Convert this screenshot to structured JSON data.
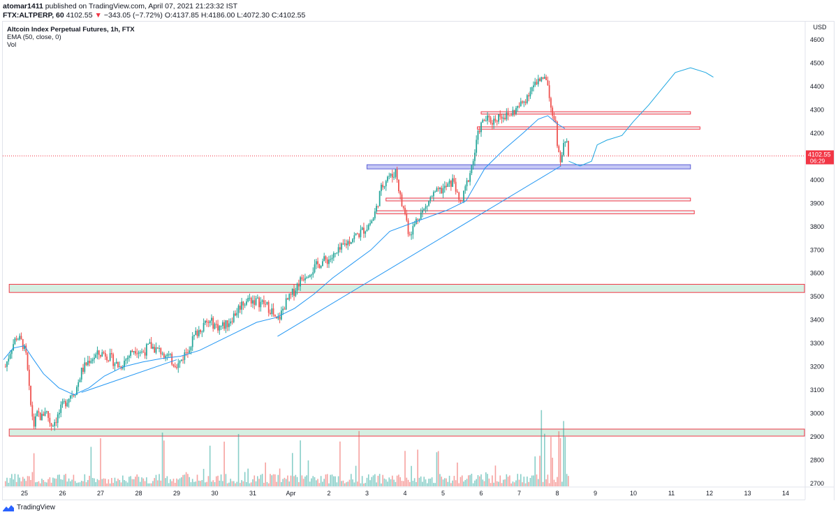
{
  "header": {
    "user": "atomar1411",
    "published": "published on TradingView.com, April 07, 2021 21:23:32 IST",
    "symbol_line": "FTX:ALTPERP, 60",
    "last": "4102.55",
    "change_arrow": "▼",
    "change": "−343.05 (−7.72%)",
    "o_label": "O:",
    "o_value": "4137.85",
    "h_label": "H:",
    "h_value": "4186.00",
    "l_label": "L:",
    "l_value": "4072.30",
    "c_label": "C:",
    "c_value": "4102.55"
  },
  "legend": {
    "title": "Altcoin Index Perpetual Futures, 1h, FTX",
    "ema": "EMA (50, close, 0)",
    "vol": "Vol"
  },
  "price_axis": {
    "currency": "USD",
    "last_price_label": "4102.55",
    "countdown": "06:29"
  },
  "footer": {
    "brand": "TradingView"
  },
  "colors": {
    "up": "#26a69a",
    "down": "#ef5350",
    "ema": "#2196f3",
    "trendline": "#2196f3",
    "zone_red": "#f23645",
    "zone_green_fill": "#d6efe2",
    "zone_blue_fill": "#c5c8f5",
    "zone_blue_border": "#5b5fd6"
  },
  "chart_data": {
    "type": "candlestick",
    "title": "Altcoin Index Perpetual Futures, 1h, FTX",
    "ylim": [
      2680,
      4650
    ],
    "y_ticks": [
      2700,
      2800,
      2900,
      3000,
      3100,
      3200,
      3300,
      3400,
      3500,
      3600,
      3700,
      3800,
      3900,
      4000,
      4100,
      4200,
      4300,
      4400,
      4500,
      4600
    ],
    "x_ticks": [
      "25",
      "26",
      "27",
      "28",
      "29",
      "30",
      "31",
      "Apr",
      "2",
      "3",
      "4",
      "5",
      "6",
      "7",
      "8",
      "9",
      "10",
      "11",
      "12",
      "13",
      "14"
    ],
    "xlim_days": [
      -0.3,
      20.4
    ],
    "price_path": [
      [
        -0.5,
        3200
      ],
      [
        -0.35,
        3280
      ],
      [
        -0.2,
        3330
      ],
      [
        -0.05,
        3300
      ],
      [
        0.05,
        3240
      ],
      [
        0.15,
        3050
      ],
      [
        0.25,
        2950
      ],
      [
        0.35,
        3000
      ],
      [
        0.45,
        2980
      ],
      [
        0.55,
        3020
      ],
      [
        0.7,
        2950
      ],
      [
        0.85,
        2980
      ],
      [
        1.0,
        3030
      ],
      [
        1.2,
        3080
      ],
      [
        1.35,
        3100
      ],
      [
        1.5,
        3180
      ],
      [
        1.7,
        3230
      ],
      [
        1.9,
        3250
      ],
      [
        2.1,
        3260
      ],
      [
        2.3,
        3230
      ],
      [
        2.5,
        3200
      ],
      [
        2.7,
        3240
      ],
      [
        2.9,
        3280
      ],
      [
        3.1,
        3260
      ],
      [
        3.3,
        3290
      ],
      [
        3.5,
        3270
      ],
      [
        3.7,
        3260
      ],
      [
        3.9,
        3220
      ],
      [
        4.05,
        3210
      ],
      [
        4.3,
        3280
      ],
      [
        4.5,
        3340
      ],
      [
        4.7,
        3380
      ],
      [
        4.9,
        3390
      ],
      [
        5.1,
        3370
      ],
      [
        5.3,
        3380
      ],
      [
        5.5,
        3420
      ],
      [
        5.7,
        3470
      ],
      [
        5.9,
        3490
      ],
      [
        6.1,
        3480
      ],
      [
        6.3,
        3470
      ],
      [
        6.5,
        3440
      ],
      [
        6.6,
        3390
      ],
      [
        6.7,
        3410
      ],
      [
        6.85,
        3470
      ],
      [
        7.0,
        3500
      ],
      [
        7.2,
        3560
      ],
      [
        7.4,
        3600
      ],
      [
        7.6,
        3620
      ],
      [
        7.8,
        3650
      ],
      [
        8.0,
        3660
      ],
      [
        8.2,
        3680
      ],
      [
        8.4,
        3720
      ],
      [
        8.6,
        3750
      ],
      [
        8.8,
        3770
      ],
      [
        9.0,
        3800
      ],
      [
        9.15,
        3830
      ],
      [
        9.25,
        3880
      ],
      [
        9.35,
        3950
      ],
      [
        9.45,
        3990
      ],
      [
        9.55,
        4020
      ],
      [
        9.65,
        4010
      ],
      [
        9.75,
        4040
      ],
      [
        9.8,
        4000
      ],
      [
        9.9,
        3900
      ],
      [
        10.0,
        3860
      ],
      [
        10.1,
        3770
      ],
      [
        10.2,
        3790
      ],
      [
        10.35,
        3850
      ],
      [
        10.5,
        3870
      ],
      [
        10.7,
        3930
      ],
      [
        10.9,
        3950
      ],
      [
        11.1,
        3970
      ],
      [
        11.3,
        4000
      ],
      [
        11.4,
        3900
      ],
      [
        11.5,
        3910
      ],
      [
        11.65,
        4000
      ],
      [
        11.8,
        4090
      ],
      [
        11.95,
        4220
      ],
      [
        12.1,
        4260
      ],
      [
        12.3,
        4250
      ],
      [
        12.5,
        4280
      ],
      [
        12.7,
        4270
      ],
      [
        12.9,
        4300
      ],
      [
        13.1,
        4330
      ],
      [
        13.3,
        4390
      ],
      [
        13.5,
        4420
      ],
      [
        13.65,
        4460
      ],
      [
        13.75,
        4420
      ],
      [
        13.85,
        4300
      ],
      [
        13.95,
        4250
      ],
      [
        14.0,
        4140
      ],
      [
        14.1,
        4060
      ],
      [
        14.15,
        4180
      ],
      [
        14.25,
        4150
      ],
      [
        14.3,
        4102.55
      ]
    ],
    "ema_path": [
      [
        -0.55,
        3230
      ],
      [
        -0.3,
        3280
      ],
      [
        0.0,
        3290
      ],
      [
        0.2,
        3240
      ],
      [
        0.5,
        3170
      ],
      [
        0.9,
        3110
      ],
      [
        1.3,
        3080
      ],
      [
        1.7,
        3110
      ],
      [
        2.1,
        3160
      ],
      [
        2.6,
        3200
      ],
      [
        3.1,
        3220
      ],
      [
        3.6,
        3235
      ],
      [
        4.1,
        3245
      ],
      [
        4.6,
        3270
      ],
      [
        5.1,
        3310
      ],
      [
        5.6,
        3350
      ],
      [
        6.1,
        3390
      ],
      [
        6.6,
        3410
      ],
      [
        7.1,
        3450
      ],
      [
        7.6,
        3510
      ],
      [
        8.1,
        3580
      ],
      [
        8.6,
        3640
      ],
      [
        9.1,
        3700
      ],
      [
        9.6,
        3780
      ],
      [
        10.1,
        3810
      ],
      [
        10.6,
        3840
      ],
      [
        11.1,
        3870
      ],
      [
        11.6,
        3910
      ],
      [
        12.1,
        4050
      ],
      [
        12.6,
        4130
      ],
      [
        13.1,
        4200
      ],
      [
        13.5,
        4260
      ],
      [
        13.75,
        4275
      ],
      [
        14.0,
        4240
      ],
      [
        14.2,
        4220
      ]
    ],
    "projection_path": [
      [
        14.3,
        4080
      ],
      [
        14.6,
        4060
      ],
      [
        14.9,
        4080
      ],
      [
        15.05,
        4150
      ],
      [
        15.3,
        4170
      ],
      [
        15.7,
        4190
      ],
      [
        16.0,
        4250
      ],
      [
        16.4,
        4320
      ],
      [
        16.8,
        4400
      ],
      [
        17.1,
        4460
      ],
      [
        17.5,
        4480
      ],
      [
        17.9,
        4460
      ],
      [
        18.1,
        4440
      ]
    ],
    "trendlines": [
      {
        "from": [
          6.65,
          3330
        ],
        "to": [
          14.1,
          4060
        ]
      },
      {
        "from": [
          1.5,
          3090
        ],
        "to": [
          4.0,
          3230
        ]
      }
    ],
    "zones": [
      {
        "x1": -0.4,
        "x2": 20.5,
        "y1": 3518,
        "y2": 3553,
        "style": "green"
      },
      {
        "x1": -0.4,
        "x2": 20.5,
        "y1": 2903,
        "y2": 2933,
        "style": "green"
      },
      {
        "x1": 9.0,
        "x2": 17.5,
        "y1": 4047,
        "y2": 4065,
        "style": "blue"
      },
      {
        "x1": 9.5,
        "x2": 17.5,
        "y1": 3910,
        "y2": 3922,
        "style": "red"
      },
      {
        "x1": 9.25,
        "x2": 17.6,
        "y1": 3855,
        "y2": 3868,
        "style": "red"
      },
      {
        "x1": 11.9,
        "x2": 17.75,
        "y1": 4217,
        "y2": 4227,
        "style": "red"
      },
      {
        "x1": 12.0,
        "x2": 17.5,
        "y1": 4282,
        "y2": 4292,
        "style": "red"
      }
    ],
    "last_price": 4102.55
  }
}
